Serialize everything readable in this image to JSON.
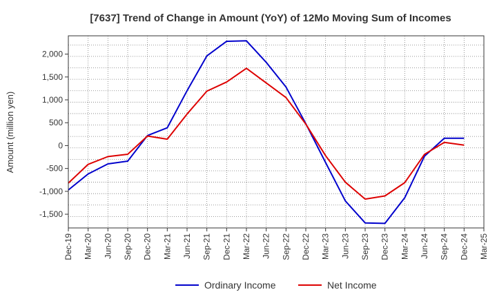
{
  "chart_data": {
    "type": "line",
    "title": "[7637]  Trend of Change in Amount (YoY) of 12Mo Moving Sum of Incomes",
    "xlabel": "",
    "ylabel": "Amount (million yen)",
    "ylim": [
      -1800,
      2400
    ],
    "yticks": [
      2000,
      1500,
      1000,
      500,
      0,
      -500,
      -1000,
      -1500
    ],
    "ytick_labels": [
      "2,000",
      "1,500",
      "1,000",
      "500",
      "0",
      "-500",
      "-1,000",
      "-1,500"
    ],
    "categories": [
      "Dec-19",
      "Mar-20",
      "Jun-20",
      "Sep-20",
      "Dec-20",
      "Mar-21",
      "Jun-21",
      "Sep-21",
      "Dec-21",
      "Mar-22",
      "Jun-22",
      "Sep-22",
      "Dec-22",
      "Mar-23",
      "Jun-23",
      "Sep-23",
      "Dec-23",
      "Mar-24",
      "Jun-24",
      "Sep-24",
      "Dec-24",
      "Mar-25"
    ],
    "series": [
      {
        "name": "Ordinary Income",
        "color": "#0000cc",
        "values": [
          -970,
          -620,
          -400,
          -340,
          220,
          390,
          1200,
          1960,
          2280,
          2290,
          1820,
          1280,
          480,
          -370,
          -1210,
          -1690,
          -1700,
          -1140,
          -230,
          160,
          160,
          null
        ]
      },
      {
        "name": "Net Income",
        "color": "#dd0000",
        "values": [
          -820,
          -410,
          -240,
          -190,
          210,
          140,
          690,
          1190,
          1390,
          1690,
          1370,
          1050,
          470,
          -220,
          -800,
          -1170,
          -1100,
          -810,
          -190,
          70,
          10,
          null
        ]
      }
    ],
    "legend_position": "bottom-center",
    "grid": true
  }
}
